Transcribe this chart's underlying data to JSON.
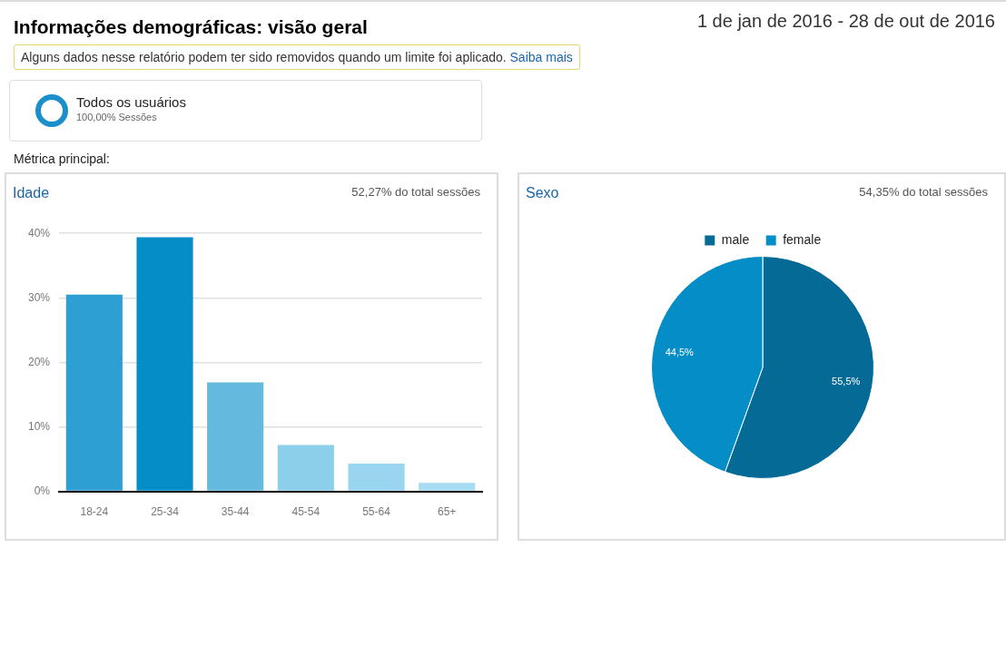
{
  "chart_data": [
    {
      "type": "other",
      "title": "Informações demográficas: visão geral",
      "subtitle": "1 de jan de 2016 - 28 de out de 2016",
      "annotations": [
        "Alguns dados nesse relatório podem ter sido removidos quando um limite foi aplicado.",
        "Saiba mais",
        "Todos os usuários",
        "100,00% Sessões",
        "Métrica principal:"
      ]
    },
    {
      "type": "bar",
      "title": "Idade",
      "annotations": [
        "52,27% do total sessões"
      ],
      "categories": [
        "18-24",
        "25-34",
        "35-44",
        "45-54",
        "55-64",
        "65+"
      ],
      "values": [
        30.5,
        39.4,
        16.9,
        7.2,
        4.3,
        1.3
      ],
      "colors": [
        "#2e9fd3",
        "#058dc7",
        "#64b9de",
        "#8ccfea",
        "#99d5ee",
        "#a6dcf1"
      ],
      "ylim": [
        0,
        40
      ],
      "yticks": [
        {
          "value": 0,
          "label": "0%"
        },
        {
          "value": 10,
          "label": "10%"
        },
        {
          "value": 20,
          "label": "20%"
        },
        {
          "value": 30,
          "label": "30%"
        },
        {
          "value": 40,
          "label": "40%"
        }
      ],
      "grid": "y",
      "legend": false
    },
    {
      "type": "pie",
      "title": "Sexo",
      "annotations": [
        "54,35% do total sessões"
      ],
      "categories": [
        "male",
        "female"
      ],
      "values": [
        55.5,
        44.5
      ],
      "colors": [
        "#066a96",
        "#058dc7"
      ],
      "value_labels": [
        "55,5%",
        "44,5%"
      ],
      "legend": "top"
    }
  ]
}
